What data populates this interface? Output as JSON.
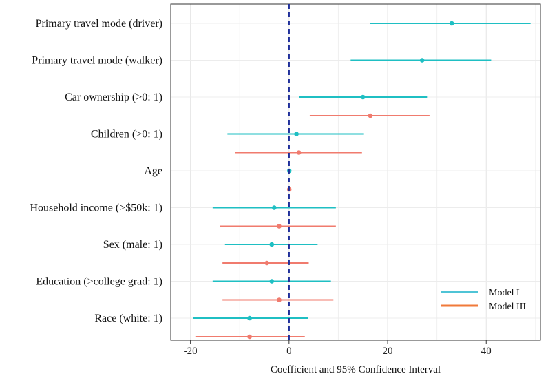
{
  "chart_data": {
    "type": "forest",
    "xlabel": "Coefficient and 95% Confidence Interval",
    "xlim": [
      -24,
      51
    ],
    "xticks": [
      -20,
      0,
      20,
      40
    ],
    "reference_line": 0,
    "grid": true,
    "categories": [
      "Primary travel mode (driver)",
      "Primary travel mode (walker)",
      "Car ownership (>0: 1)",
      "Children (>0: 1)",
      "Age",
      "Household income (>$50k: 1)",
      "Sex (male: 1)",
      "Education (>college grad: 1)",
      "Race (white: 1)"
    ],
    "series": [
      {
        "name": "Model I",
        "color": "#1fbfc3",
        "estimates": [
          33,
          27,
          15,
          1.5,
          0.05,
          -3,
          -3.5,
          -3.5,
          -8
        ],
        "lower": [
          16.5,
          12.5,
          2,
          -12.5,
          -0.1,
          -15.5,
          -13,
          -15.5,
          -19.5
        ],
        "upper": [
          49,
          41,
          28,
          15.2,
          0.2,
          9.5,
          5.8,
          8.5,
          3.8
        ]
      },
      {
        "name": "Model III",
        "color": "#f07b6e",
        "estimates": [
          null,
          null,
          16.5,
          2,
          0.05,
          -2,
          -4.5,
          -2,
          -8
        ],
        "lower": [
          null,
          null,
          4.2,
          -11,
          -0.1,
          -14,
          -13.5,
          -13.5,
          -19
        ],
        "upper": [
          null,
          null,
          28.5,
          14.8,
          0.2,
          9.5,
          4,
          9,
          3.2
        ]
      }
    ],
    "legend": {
      "position": "bottom-right",
      "entries": [
        {
          "label": "Model I",
          "color": "#4fc4d6"
        },
        {
          "label": "Model III",
          "color": "#f07a3a"
        }
      ]
    },
    "reference_line_color": "#1f2f9a"
  }
}
